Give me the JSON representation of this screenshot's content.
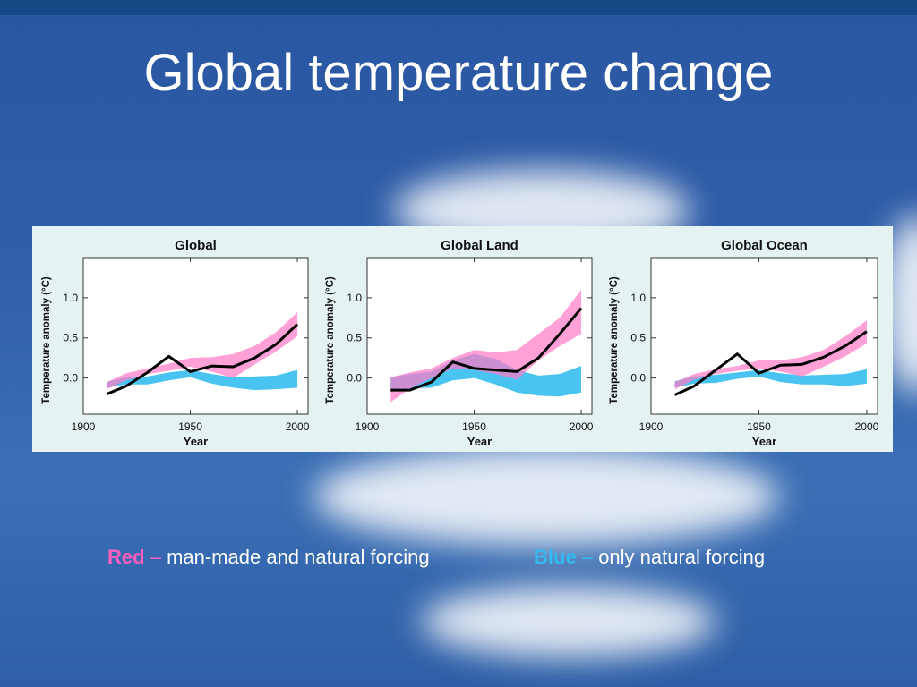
{
  "slide": {
    "title": "Global temperature change"
  },
  "colors": {
    "red_band": "#ff7dc6",
    "blue_band": "#3fc0ef",
    "observed_line": "#000000",
    "caption_red": "#ff5fbf",
    "caption_blue": "#36b8f0"
  },
  "caption": {
    "red_key": "Red",
    "red_dash": "–",
    "red_text": "man-made and natural forcing",
    "blue_key": "Blue",
    "blue_dash": "–",
    "blue_text": "only natural forcing"
  },
  "chart_data": [
    {
      "type": "line",
      "title": "Global",
      "xlabel": "Year",
      "ylabel": "Temperature anomaly (°C)",
      "xlim": [
        1900,
        2005
      ],
      "ylim": [
        -0.45,
        1.5
      ],
      "xticks": [
        1900,
        1950,
        2000
      ],
      "yticks": [
        0.0,
        0.5,
        1.0
      ],
      "ytick_labels": [
        "0.0",
        "0.5",
        "1.0"
      ],
      "series": [
        {
          "role": "natural_band",
          "x": [
            1911,
            1920,
            1930,
            1940,
            1950,
            1960,
            1970,
            1980,
            1990,
            2000
          ],
          "low": [
            -0.12,
            -0.08,
            -0.08,
            -0.03,
            0.01,
            -0.07,
            -0.12,
            -0.15,
            -0.14,
            -0.12
          ],
          "high": [
            -0.05,
            0.01,
            0.02,
            0.07,
            0.1,
            0.05,
            0.01,
            0.02,
            0.03,
            0.1
          ]
        },
        {
          "role": "combined_band",
          "x": [
            1911,
            1920,
            1930,
            1940,
            1950,
            1960,
            1970,
            1980,
            1990,
            2000
          ],
          "low": [
            -0.14,
            -0.03,
            0.05,
            0.09,
            0.14,
            0.08,
            0.0,
            0.17,
            0.33,
            0.52
          ],
          "high": [
            -0.05,
            0.06,
            0.12,
            0.18,
            0.25,
            0.26,
            0.3,
            0.4,
            0.57,
            0.82
          ]
        },
        {
          "role": "observed",
          "x": [
            1911,
            1920,
            1930,
            1940,
            1950,
            1960,
            1970,
            1980,
            1990,
            2000
          ],
          "y": [
            -0.2,
            -0.1,
            0.07,
            0.27,
            0.08,
            0.15,
            0.14,
            0.25,
            0.42,
            0.67
          ]
        }
      ]
    },
    {
      "type": "line",
      "title": "Global Land",
      "xlabel": "Year",
      "ylabel": "Temperature anomaly (°C)",
      "xlim": [
        1900,
        2005
      ],
      "ylim": [
        -0.45,
        1.5
      ],
      "xticks": [
        1900,
        1950,
        2000
      ],
      "yticks": [
        0.0,
        0.5,
        1.0
      ],
      "ytick_labels": [
        "0.0",
        "0.5",
        "1.0"
      ],
      "series": [
        {
          "role": "natural_band",
          "x": [
            1911,
            1920,
            1930,
            1940,
            1950,
            1960,
            1970,
            1980,
            1990,
            2000
          ],
          "low": [
            -0.14,
            -0.13,
            -0.12,
            -0.03,
            0.0,
            -0.08,
            -0.18,
            -0.22,
            -0.23,
            -0.18
          ],
          "high": [
            0.01,
            0.05,
            0.08,
            0.22,
            0.3,
            0.24,
            0.1,
            0.03,
            0.05,
            0.15
          ]
        },
        {
          "role": "combined_band",
          "x": [
            1911,
            1920,
            1930,
            1940,
            1950,
            1960,
            1970,
            1980,
            1990,
            2000
          ],
          "low": [
            -0.3,
            -0.13,
            0.0,
            0.12,
            0.1,
            0.05,
            -0.02,
            0.22,
            0.4,
            0.55
          ],
          "high": [
            0.01,
            0.07,
            0.12,
            0.25,
            0.35,
            0.32,
            0.35,
            0.55,
            0.75,
            1.1
          ]
        },
        {
          "role": "observed",
          "x": [
            1911,
            1920,
            1930,
            1940,
            1950,
            1960,
            1970,
            1980,
            1990,
            2000
          ],
          "y": [
            -0.15,
            -0.15,
            -0.05,
            0.2,
            0.12,
            0.1,
            0.08,
            0.25,
            0.55,
            0.87
          ]
        }
      ]
    },
    {
      "type": "line",
      "title": "Global Ocean",
      "xlabel": "Year",
      "ylabel": "Temperature anomaly (°C)",
      "xlim": [
        1900,
        2005
      ],
      "ylim": [
        -0.45,
        1.5
      ],
      "xticks": [
        1900,
        1950,
        2000
      ],
      "yticks": [
        0.0,
        0.5,
        1.0
      ],
      "ytick_labels": [
        "0.0",
        "0.5",
        "1.0"
      ],
      "series": [
        {
          "role": "natural_band",
          "x": [
            1911,
            1920,
            1930,
            1940,
            1950,
            1960,
            1970,
            1980,
            1990,
            2000
          ],
          "low": [
            -0.12,
            -0.07,
            -0.06,
            -0.01,
            0.02,
            -0.05,
            -0.08,
            -0.08,
            -0.1,
            -0.07
          ],
          "high": [
            -0.04,
            0.02,
            0.04,
            0.07,
            0.1,
            0.06,
            0.03,
            0.04,
            0.05,
            0.11
          ]
        },
        {
          "role": "combined_band",
          "x": [
            1911,
            1920,
            1930,
            1940,
            1950,
            1960,
            1970,
            1980,
            1990,
            2000
          ],
          "low": [
            -0.14,
            -0.02,
            0.05,
            0.09,
            0.12,
            0.08,
            0.02,
            0.14,
            0.27,
            0.43
          ],
          "high": [
            -0.05,
            0.05,
            0.11,
            0.15,
            0.22,
            0.22,
            0.26,
            0.35,
            0.52,
            0.72
          ]
        },
        {
          "role": "observed",
          "x": [
            1911,
            1920,
            1930,
            1940,
            1950,
            1960,
            1970,
            1980,
            1990,
            2000
          ],
          "y": [
            -0.21,
            -0.1,
            0.1,
            0.3,
            0.06,
            0.16,
            0.17,
            0.26,
            0.4,
            0.58
          ]
        }
      ]
    }
  ]
}
